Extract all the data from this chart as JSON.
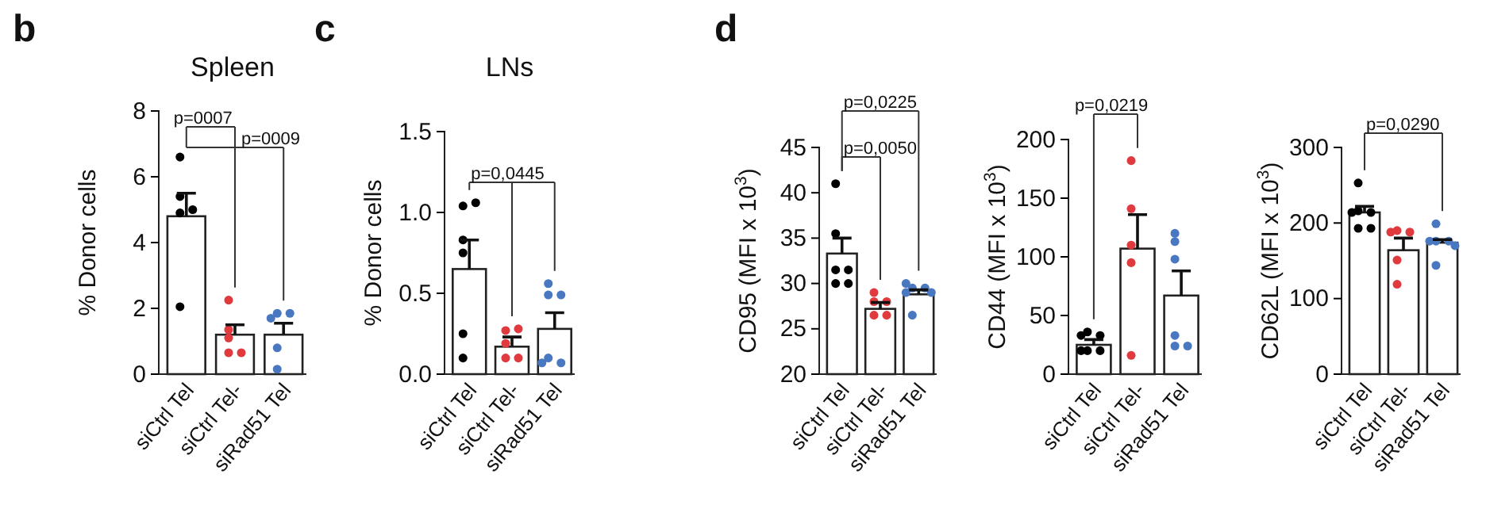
{
  "chart_data": [
    {
      "type": "bar",
      "title": "Spleen",
      "ylabel": "% Donor cells",
      "categories": [
        "siCtrl Tel",
        "siCtrl Tel-",
        "siRad51 Tel"
      ],
      "ylim": [
        0,
        8
      ],
      "yticks": [
        0,
        2,
        4,
        6,
        8
      ],
      "marker": "circle",
      "annotations": [
        "b",
        "p=0007",
        "p=0009"
      ],
      "series": [
        {
          "color": "#ffffff",
          "values": [
            4.8,
            1.2,
            1.2
          ],
          "errors": [
            [
              4.8,
              5.5
            ],
            [
              1.2,
              1.5
            ],
            [
              1.2,
              1.55
            ]
          ]
        },
        {
          "type": "scatter",
          "color": "#000000",
          "x": [
            "siCtrl Tel",
            "siCtrl Tel",
            "siCtrl Tel",
            "siCtrl Tel",
            "siCtrl Tel"
          ],
          "values": [
            6.6,
            5.4,
            4.9,
            5.0,
            2.05
          ]
        },
        {
          "type": "scatter",
          "color": "#e0393e",
          "x": [
            "siCtrl Tel-",
            "siCtrl Tel-",
            "siCtrl Tel-",
            "siCtrl Tel-",
            "siCtrl Tel-"
          ],
          "values": [
            2.25,
            1.35,
            1.1,
            0.65,
            0.65
          ]
        },
        {
          "type": "scatter",
          "color": "#4a78c0",
          "x": [
            "siRad51 Tel",
            "siRad51 Tel",
            "siRad51 Tel",
            "siRad51 Tel",
            "siRad51 Tel"
          ],
          "values": [
            1.85,
            1.85,
            1.7,
            0.8,
            0.15
          ]
        }
      ]
    },
    {
      "type": "bar",
      "title": "LNs",
      "ylabel": "% Donor cells",
      "categories": [
        "siCtrl Tel",
        "siCtrl Tel-",
        "siRad51 Tel"
      ],
      "ylim": [
        0,
        1.5
      ],
      "yticks": [
        {
          "value": 0,
          "label": "0.0"
        },
        {
          "value": 0.5,
          "label": "0.5"
        },
        {
          "value": 1,
          "label": "1.0"
        },
        {
          "value": 1.5,
          "label": "1.5"
        }
      ],
      "marker": "circle",
      "annotations": [
        "c",
        "p=0,0445"
      ],
      "series": [
        {
          "color": "#ffffff",
          "values": [
            0.65,
            0.17,
            0.28
          ],
          "errors": [
            [
              0.65,
              0.83
            ],
            [
              0.17,
              0.23
            ],
            [
              0.28,
              0.38
            ]
          ]
        },
        {
          "type": "scatter",
          "color": "#000000",
          "x": [
            "siCtrl Tel",
            "siCtrl Tel",
            "siCtrl Tel",
            "siCtrl Tel",
            "siCtrl Tel",
            "siCtrl Tel"
          ],
          "values": [
            1.04,
            1.06,
            0.83,
            0.75,
            0.25,
            0.1
          ]
        },
        {
          "type": "scatter",
          "color": "#e0393e",
          "x": [
            "siCtrl Tel-",
            "siCtrl Tel-",
            "siCtrl Tel-",
            "siCtrl Tel-",
            "siCtrl Tel-"
          ],
          "values": [
            0.27,
            0.28,
            0.19,
            0.1,
            0.1
          ]
        },
        {
          "type": "scatter",
          "color": "#4a78c0",
          "x": [
            "siRad51 Tel",
            "siRad51 Tel",
            "siRad51 Tel",
            "siRad51 Tel",
            "siRad51 Tel",
            "siRad51 Tel"
          ],
          "values": [
            0.56,
            0.49,
            0.49,
            0.1,
            0.07,
            0.07
          ]
        }
      ]
    },
    {
      "type": "bar",
      "ylabel": "CD95  (MFI x 10$^{3}$)",
      "categories": [
        "siCtrl Tel",
        "siCtrl Tel-",
        "siRad51 Tel"
      ],
      "ylim": [
        20,
        45
      ],
      "yticks": [
        20,
        25,
        30,
        35,
        40,
        45
      ],
      "marker": "circle",
      "annotations": [
        "d",
        "p=0,0225",
        "p=0,0050"
      ],
      "series": [
        {
          "color": "#ffffff",
          "values": [
            33.3,
            27.2,
            28.8
          ],
          "errors": [
            [
              33.3,
              35
            ],
            [
              27.2,
              27.9
            ],
            [
              28.8,
              29.3
            ]
          ]
        },
        {
          "type": "scatter",
          "color": "#000000",
          "x": [
            "siCtrl Tel",
            "siCtrl Tel",
            "siCtrl Tel",
            "siCtrl Tel",
            "siCtrl Tel",
            "siCtrl Tel"
          ],
          "values": [
            41,
            35.5,
            31.5,
            31.5,
            30,
            30
          ]
        },
        {
          "type": "scatter",
          "color": "#e0393e",
          "x": [
            "siCtrl Tel-",
            "siCtrl Tel-",
            "siCtrl Tel-",
            "siCtrl Tel-",
            "siCtrl Tel-"
          ],
          "values": [
            29,
            28,
            28,
            26.5,
            26.5
          ]
        },
        {
          "type": "scatter",
          "color": "#4a78c0",
          "x": [
            "siRad51 Tel",
            "siRad51 Tel",
            "siRad51 Tel",
            "siRad51 Tel",
            "siRad51 Tel",
            "siRad51 Tel"
          ],
          "values": [
            29.5,
            29.5,
            29,
            30,
            29,
            26.5
          ]
        }
      ]
    },
    {
      "type": "bar",
      "ylabel": "CD44 (MFI x 10$^{3}$)",
      "categories": [
        "siCtrl Tel",
        "siCtrl Tel-",
        "siRad51 Tel"
      ],
      "ylim": [
        0,
        200
      ],
      "yticks": [
        0,
        50,
        100,
        150,
        200
      ],
      "marker": "circle",
      "annotations": [
        "p=0,0219"
      ],
      "series": [
        {
          "color": "#ffffff",
          "values": [
            25,
            107,
            67
          ],
          "errors": [
            [
              25,
              29.5
            ],
            [
              107,
              136
            ],
            [
              67,
              88
            ]
          ]
        },
        {
          "type": "scatter",
          "color": "#000000",
          "x": [
            "siCtrl Tel",
            "siCtrl Tel",
            "siCtrl Tel",
            "siCtrl Tel",
            "siCtrl Tel",
            "siCtrl Tel"
          ],
          "values": [
            36,
            33,
            33,
            20,
            20,
            20
          ]
        },
        {
          "type": "scatter",
          "color": "#e0393e",
          "x": [
            "siCtrl Tel-",
            "siCtrl Tel-",
            "siCtrl Tel-",
            "siCtrl Tel-",
            "siCtrl Tel-"
          ],
          "values": [
            182,
            141,
            110,
            95,
            16
          ]
        },
        {
          "type": "scatter",
          "color": "#4a78c0",
          "x": [
            "siRad51 Tel",
            "siRad51 Tel",
            "siRad51 Tel",
            "siRad51 Tel",
            "siRad51 Tel",
            "siRad51 Tel"
          ],
          "values": [
            120,
            113,
            98,
            33,
            24,
            24
          ]
        }
      ]
    },
    {
      "type": "bar",
      "ylabel": "CD62L (MFI x 10$^{3}$)",
      "categories": [
        "siCtrl Tel",
        "siCtrl Tel-",
        "siRad51 Tel"
      ],
      "ylim": [
        0,
        300
      ],
      "yticks": [
        0,
        100,
        200,
        300
      ],
      "marker": "circle",
      "annotations": [
        "p=0,0290"
      ],
      "series": [
        {
          "color": "#ffffff",
          "values": [
            214,
            164,
            174
          ],
          "errors": [
            [
              214,
              222
            ],
            [
              164,
              180
            ],
            [
              174,
              178
            ]
          ]
        },
        {
          "type": "scatter",
          "color": "#000000",
          "x": [
            "siCtrl Tel",
            "siCtrl Tel",
            "siCtrl Tel",
            "siCtrl Tel",
            "siCtrl Tel",
            "siCtrl Tel"
          ],
          "values": [
            253,
            216,
            214,
            214,
            193,
            193
          ]
        },
        {
          "type": "scatter",
          "color": "#e0393e",
          "x": [
            "siCtrl Tel-",
            "siCtrl Tel-",
            "siCtrl Tel-",
            "siCtrl Tel-",
            "siCtrl Tel-"
          ],
          "values": [
            190,
            188,
            188,
            151,
            119
          ]
        },
        {
          "type": "scatter",
          "color": "#4a78c0",
          "x": [
            "siRad51 Tel",
            "siRad51 Tel",
            "siRad51 Tel",
            "siRad51 Tel",
            "siRad51 Tel",
            "siRad51 Tel"
          ],
          "values": [
            199,
            176,
            176,
            176,
            170,
            144
          ]
        }
      ]
    }
  ]
}
